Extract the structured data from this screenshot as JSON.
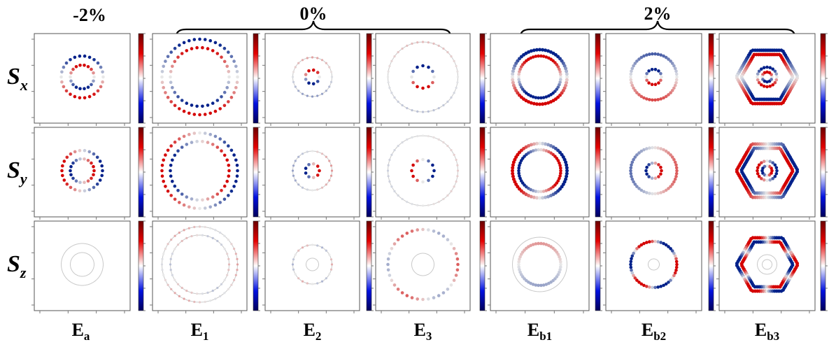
{
  "strain_labels": {
    "left": "-2%",
    "middle": "0%",
    "right": "2%"
  },
  "row_labels": [
    {
      "main": "S",
      "sub": "x"
    },
    {
      "main": "S",
      "sub": "y"
    },
    {
      "main": "S",
      "sub": "z"
    }
  ],
  "column_labels": [
    {
      "main": "E",
      "sub": "a"
    },
    {
      "main": "E",
      "sub": "1"
    },
    {
      "main": "E",
      "sub": "2"
    },
    {
      "main": "E",
      "sub": "3"
    },
    {
      "main": "E",
      "sub": "b1"
    },
    {
      "main": "E",
      "sub": "b2"
    },
    {
      "main": "E",
      "sub": "b3"
    }
  ],
  "colors": {
    "positive": "#d40000",
    "negative": "#00208a",
    "neutral": "#e8e8e8",
    "colorbar_top": "#7a0000",
    "colorbar_bottom": "#000060"
  },
  "panel_types": {
    "description_keys": "row index: Sx, Sy, Sz; column index: Ea, E1, E2, E3, Eb1, Eb2, Eb3"
  }
}
